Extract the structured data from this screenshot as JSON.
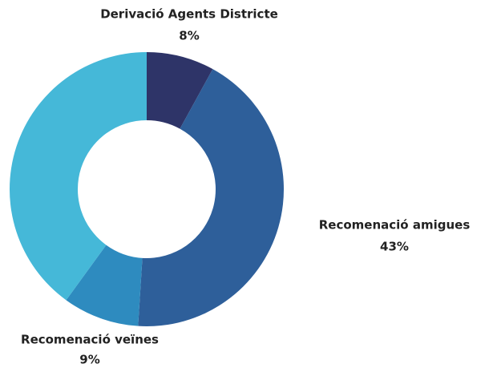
{
  "chart_data": {
    "type": "donut",
    "categories": [
      "Derivació Agents Districte",
      "Recomenació amigues",
      "Recomenació veïnes",
      null
    ],
    "values": [
      8,
      43,
      9,
      40
    ],
    "value_labels": [
      "8%",
      "43%",
      "9%",
      null
    ],
    "colors": [
      "#2e3468",
      "#2e5f9a",
      "#2e8bbf",
      "#45b8d8"
    ]
  }
}
